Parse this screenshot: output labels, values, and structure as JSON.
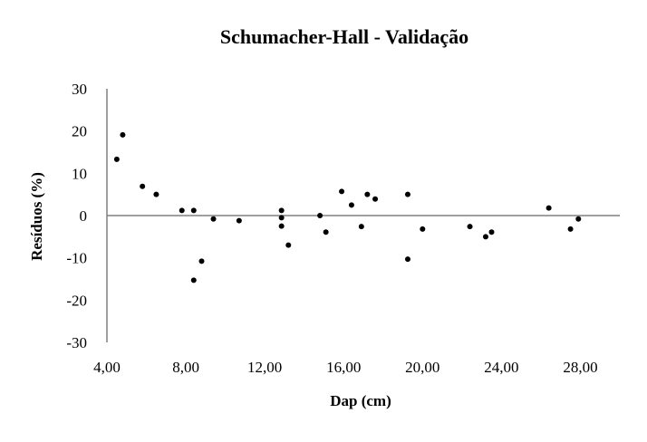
{
  "chart_data": {
    "type": "scatter",
    "title": "Schumacher-Hall - Validação",
    "xlabel": "Dap (cm)",
    "ylabel": "Resíduos (%)",
    "xlim": [
      4,
      30
    ],
    "ylim": [
      -30,
      30
    ],
    "x_ticks": [
      4,
      8,
      12,
      16,
      20,
      24,
      28
    ],
    "x_tick_labels": [
      "4,00",
      "8,00",
      "12,00",
      "16,00",
      "20,00",
      "24,00",
      "28,00"
    ],
    "y_ticks": [
      -30,
      -20,
      -10,
      0,
      10,
      20,
      30
    ],
    "y_tick_labels": [
      "-30",
      "-20",
      "-10",
      "0",
      "10",
      "20",
      "30"
    ],
    "grid": false,
    "marker_color": "#000000",
    "axis_color": "#808080",
    "points": [
      {
        "x": 4.5,
        "y": 13.3
      },
      {
        "x": 4.8,
        "y": 19.1
      },
      {
        "x": 5.8,
        "y": 6.9
      },
      {
        "x": 6.5,
        "y": 5.0
      },
      {
        "x": 7.8,
        "y": 1.2
      },
      {
        "x": 8.4,
        "y": 1.2
      },
      {
        "x": 8.4,
        "y": -15.3
      },
      {
        "x": 8.8,
        "y": -10.8
      },
      {
        "x": 9.4,
        "y": -0.8
      },
      {
        "x": 10.7,
        "y": -1.2
      },
      {
        "x": 12.85,
        "y": 1.2
      },
      {
        "x": 12.85,
        "y": -0.5
      },
      {
        "x": 12.85,
        "y": -2.5
      },
      {
        "x": 13.2,
        "y": -7.0
      },
      {
        "x": 14.8,
        "y": 0.0
      },
      {
        "x": 15.1,
        "y": -3.9
      },
      {
        "x": 15.9,
        "y": 5.7
      },
      {
        "x": 16.4,
        "y": 2.5
      },
      {
        "x": 16.9,
        "y": -2.6
      },
      {
        "x": 17.2,
        "y": 5.0
      },
      {
        "x": 17.6,
        "y": 3.9
      },
      {
        "x": 19.25,
        "y": 5.0
      },
      {
        "x": 19.25,
        "y": -10.3
      },
      {
        "x": 20.0,
        "y": -3.2
      },
      {
        "x": 22.4,
        "y": -2.6
      },
      {
        "x": 23.2,
        "y": -5.0
      },
      {
        "x": 23.5,
        "y": -3.9
      },
      {
        "x": 26.4,
        "y": 1.8
      },
      {
        "x": 27.5,
        "y": -3.2
      },
      {
        "x": 27.9,
        "y": -0.8
      }
    ]
  }
}
